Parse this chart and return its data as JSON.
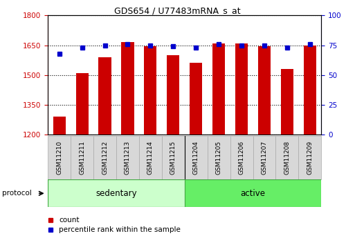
{
  "title": "GDS654 / U77483mRNA_s_at",
  "samples": [
    "GSM11210",
    "GSM11211",
    "GSM11212",
    "GSM11213",
    "GSM11214",
    "GSM11215",
    "GSM11204",
    "GSM11205",
    "GSM11206",
    "GSM11207",
    "GSM11208",
    "GSM11209"
  ],
  "group_labels": [
    "sedentary",
    "active"
  ],
  "sed_color": "#ccffcc",
  "act_color": "#66ee66",
  "red_values": [
    1290,
    1510,
    1590,
    1665,
    1645,
    1600,
    1560,
    1660,
    1660,
    1645,
    1530,
    1650
  ],
  "blue_values": [
    68,
    73,
    75,
    76,
    75,
    74,
    73,
    76,
    75,
    75,
    73,
    76
  ],
  "ylim_left": [
    1200,
    1800
  ],
  "ylim_right": [
    0,
    100
  ],
  "yticks_left": [
    1200,
    1350,
    1500,
    1650,
    1800
  ],
  "yticks_right": [
    0,
    25,
    50,
    75,
    100
  ],
  "bar_color": "#cc0000",
  "marker_color": "#0000cc",
  "tick_color_left": "#cc0000",
  "tick_color_right": "#0000cc",
  "protocol_label": "protocol",
  "legend_count": "count",
  "legend_pct": "percentile rank within the sample",
  "gray_box": "#d8d8d8",
  "gray_border": "#aaaaaa"
}
